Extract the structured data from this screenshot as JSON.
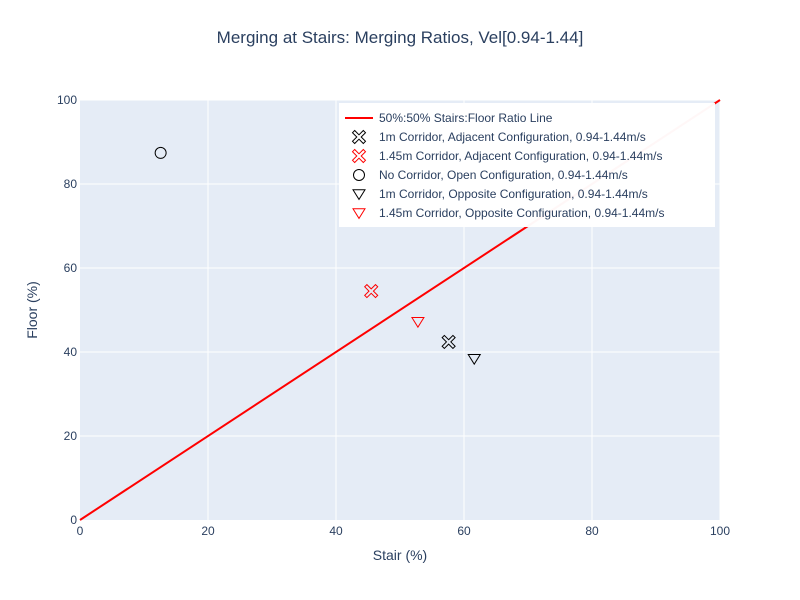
{
  "chart_data": {
    "type": "scatter",
    "title": "Merging at Stairs: Merging Ratios, Vel[0.94-1.44]",
    "xlabel": "Stair (%)",
    "ylabel": "Floor (%)",
    "xlim": [
      0,
      100
    ],
    "ylim": [
      0,
      100
    ],
    "x_ticks": [
      0,
      20,
      40,
      60,
      80,
      100
    ],
    "y_ticks": [
      0,
      20,
      40,
      60,
      80,
      100
    ],
    "x_tick_labels": [
      "0",
      "20",
      "40",
      "60",
      "80",
      "100"
    ],
    "y_tick_labels": [
      "0",
      "20",
      "40",
      "60",
      "80",
      "100"
    ],
    "grid": true,
    "plot_background": "#e5ecf6",
    "legend_position": "top-right",
    "series": [
      {
        "name": "50%:50% Stairs:Floor Ratio Line",
        "mode": "line",
        "color": "#ff0000",
        "x": [
          0,
          100
        ],
        "y": [
          0,
          100
        ]
      },
      {
        "name": "1m Corridor, Adjacent Configuration, 0.94-1.44m/s",
        "mode": "marker",
        "symbol": "x-open",
        "color": "#000000",
        "x": [
          57.6
        ],
        "y": [
          42.4
        ]
      },
      {
        "name": "1.45m Corridor, Adjacent Configuration, 0.94-1.44m/s",
        "mode": "marker",
        "symbol": "x-open",
        "color": "#ff0000",
        "x": [
          45.5
        ],
        "y": [
          54.5
        ]
      },
      {
        "name": "No Corridor, Open Configuration, 0.94-1.44m/s",
        "mode": "marker",
        "symbol": "circle-open",
        "color": "#000000",
        "x": [
          12.6
        ],
        "y": [
          87.4
        ]
      },
      {
        "name": "1m Corridor, Opposite Configuration, 0.94-1.44m/s",
        "mode": "marker",
        "symbol": "triangle-down-open",
        "color": "#000000",
        "x": [
          61.6
        ],
        "y": [
          38.4
        ]
      },
      {
        "name": "1.45m Corridor, Opposite Configuration, 0.94-1.44m/s",
        "mode": "marker",
        "symbol": "triangle-down-open",
        "color": "#ff0000",
        "x": [
          52.8
        ],
        "y": [
          47.2
        ]
      }
    ]
  }
}
